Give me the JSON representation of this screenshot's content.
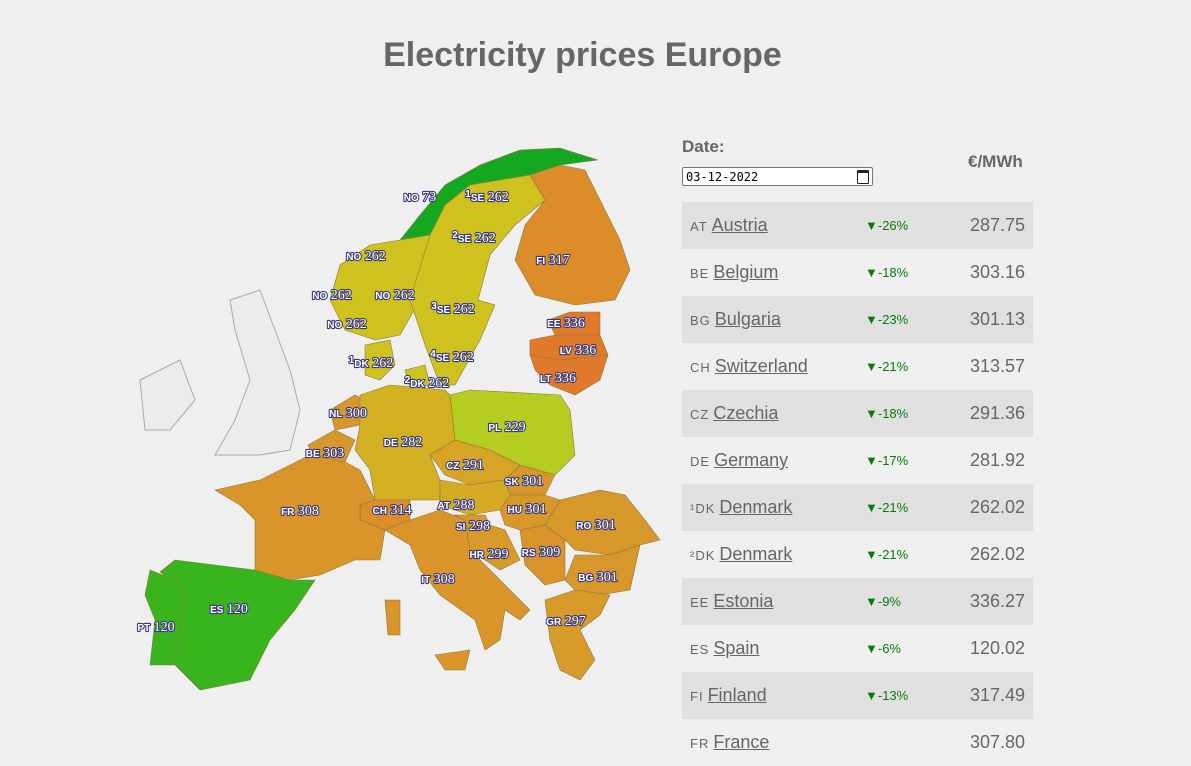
{
  "title": "Electricity prices Europe",
  "date_label": "Date:",
  "date_value": "03-12-2022",
  "unit_label": "€/MWh",
  "map_regions": [
    {
      "code": "NO",
      "sup": "",
      "value": "73",
      "color": "#14a820"
    },
    {
      "code": "NO",
      "sup": "",
      "value": "262",
      "color": "#cfc21e"
    },
    {
      "code": "SE",
      "sup": "",
      "value": "262",
      "color": "#cfc21e"
    },
    {
      "code": "FI",
      "sup": "",
      "value": "317",
      "color": "#dd8c2a"
    },
    {
      "code": "EE",
      "sup": "",
      "value": "336",
      "color": "#e07a2a"
    },
    {
      "code": "LV",
      "sup": "",
      "value": "336",
      "color": "#e07a2a"
    },
    {
      "code": "LT",
      "sup": "",
      "value": "336",
      "color": "#e07a2a"
    },
    {
      "code": "DK",
      "sup": "1",
      "value": "262",
      "color": "#cfc21e"
    },
    {
      "code": "DK",
      "sup": "2",
      "value": "262",
      "color": "#cfc21e"
    },
    {
      "code": "NL",
      "sup": "",
      "value": "300",
      "color": "#d8972a"
    },
    {
      "code": "BE",
      "sup": "",
      "value": "303",
      "color": "#d8972a"
    },
    {
      "code": "DE",
      "sup": "",
      "value": "282",
      "color": "#d2b022"
    },
    {
      "code": "PL",
      "sup": "",
      "value": "229",
      "color": "#b5cc20"
    },
    {
      "code": "CZ",
      "sup": "",
      "value": "291",
      "color": "#d6a526"
    },
    {
      "code": "SK",
      "sup": "",
      "value": "301",
      "color": "#d8972a"
    },
    {
      "code": "AT",
      "sup": "",
      "value": "288",
      "color": "#d5aa24"
    },
    {
      "code": "CH",
      "sup": "",
      "value": "314",
      "color": "#dc8d2a"
    },
    {
      "code": "HU",
      "sup": "",
      "value": "301",
      "color": "#d8972a"
    },
    {
      "code": "SI",
      "sup": "",
      "value": "298",
      "color": "#d89a28"
    },
    {
      "code": "HR",
      "sup": "",
      "value": "299",
      "color": "#d89a28"
    },
    {
      "code": "RS",
      "sup": "",
      "value": "309",
      "color": "#da922a"
    },
    {
      "code": "RO",
      "sup": "",
      "value": "301",
      "color": "#d8972a"
    },
    {
      "code": "BG",
      "sup": "",
      "value": "301",
      "color": "#d8972a"
    },
    {
      "code": "GR",
      "sup": "",
      "value": "297",
      "color": "#d89a28"
    },
    {
      "code": "IT",
      "sup": "",
      "value": "308",
      "color": "#da952a"
    },
    {
      "code": "FR",
      "sup": "",
      "value": "308",
      "color": "#da952a"
    },
    {
      "code": "ES",
      "sup": "",
      "value": "120",
      "color": "#38b41c"
    },
    {
      "code": "PT",
      "sup": "",
      "value": "120",
      "color": "#38b41c"
    }
  ],
  "map_labels": [
    {
      "code": "NO",
      "sup": "",
      "value": "73"
    },
    {
      "code": "SE",
      "sup": "1",
      "value": "262"
    },
    {
      "code": "SE",
      "sup": "2",
      "value": "262"
    },
    {
      "code": "FI",
      "sup": "",
      "value": "317"
    },
    {
      "code": "NO",
      "sup": "",
      "value": "262"
    },
    {
      "code": "NO",
      "sup": "",
      "value": "262"
    },
    {
      "code": "NO",
      "sup": "",
      "value": "262"
    },
    {
      "code": "NO",
      "sup": "",
      "value": "262"
    },
    {
      "code": "SE",
      "sup": "3",
      "value": "262"
    },
    {
      "code": "EE",
      "sup": "",
      "value": "336"
    },
    {
      "code": "LV",
      "sup": "",
      "value": "336"
    },
    {
      "code": "LT",
      "sup": "",
      "value": "336"
    },
    {
      "code": "SE",
      "sup": "4",
      "value": "262"
    },
    {
      "code": "DK",
      "sup": "1",
      "value": "262"
    },
    {
      "code": "DK",
      "sup": "2",
      "value": "262"
    },
    {
      "code": "NL",
      "sup": "",
      "value": "300"
    },
    {
      "code": "DE",
      "sup": "",
      "value": "282"
    },
    {
      "code": "PL",
      "sup": "",
      "value": "229"
    },
    {
      "code": "BE",
      "sup": "",
      "value": "303"
    },
    {
      "code": "CZ",
      "sup": "",
      "value": "291"
    },
    {
      "code": "SK",
      "sup": "",
      "value": "301"
    },
    {
      "code": "AT",
      "sup": "",
      "value": "288"
    },
    {
      "code": "CH",
      "sup": "",
      "value": "314"
    },
    {
      "code": "HU",
      "sup": "",
      "value": "301"
    },
    {
      "code": "FR",
      "sup": "",
      "value": "308"
    },
    {
      "code": "SI",
      "sup": "",
      "value": "298"
    },
    {
      "code": "RO",
      "sup": "",
      "value": "301"
    },
    {
      "code": "HR",
      "sup": "",
      "value": "299"
    },
    {
      "code": "RS",
      "sup": "",
      "value": "309"
    },
    {
      "code": "BG",
      "sup": "",
      "value": "301"
    },
    {
      "code": "IT",
      "sup": "",
      "value": "308"
    },
    {
      "code": "ES",
      "sup": "",
      "value": "120"
    },
    {
      "code": "GR",
      "sup": "",
      "value": "297"
    },
    {
      "code": "PT",
      "sup": "",
      "value": "120"
    }
  ],
  "table": [
    {
      "code": "AT",
      "name": "Austria",
      "change": "▼-26%",
      "price": "287.75"
    },
    {
      "code": "BE",
      "name": "Belgium",
      "change": "▼-18%",
      "price": "303.16"
    },
    {
      "code": "BG",
      "name": "Bulgaria",
      "change": "▼-23%",
      "price": "301.13"
    },
    {
      "code": "CH",
      "name": "Switzerland",
      "change": "▼-21%",
      "price": "313.57"
    },
    {
      "code": "CZ",
      "name": "Czechia",
      "change": "▼-18%",
      "price": "291.36"
    },
    {
      "code": "DE",
      "name": "Germany",
      "change": "▼-17%",
      "price": "281.92"
    },
    {
      "code": "¹DK",
      "name": "Denmark",
      "change": "▼-21%",
      "price": "262.02"
    },
    {
      "code": "²DK",
      "name": "Denmark",
      "change": "▼-21%",
      "price": "262.02"
    },
    {
      "code": "EE",
      "name": "Estonia",
      "change": "▼-9%",
      "price": "336.27"
    },
    {
      "code": "ES",
      "name": "Spain",
      "change": "▼-6%",
      "price": "120.02"
    },
    {
      "code": "FI",
      "name": "Finland",
      "change": "▼-13%",
      "price": "317.49"
    },
    {
      "code": "FR",
      "name": "France",
      "change": "",
      "price": "307.80"
    }
  ]
}
